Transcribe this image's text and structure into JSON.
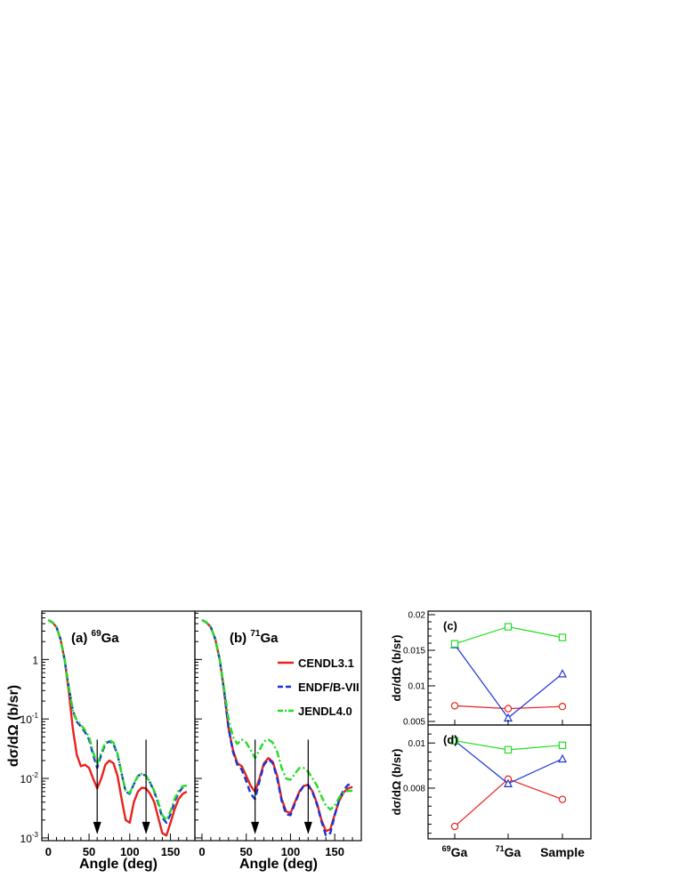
{
  "chart_data": [
    {
      "id": "a",
      "type": "line",
      "panel_label": "(a)",
      "nuclide_mass": "69",
      "nuclide_symbol": "Ga",
      "xlabel": "Angle (deg)",
      "ylabel": "dσ/dΩ (b/sr)",
      "xlim": [
        -8,
        180
      ],
      "ylim": [
        0.0009,
        6.5
      ],
      "yscale": "log",
      "x_ticks": [
        0,
        50,
        100,
        150
      ],
      "y_tick_labels": [
        {
          "value": 1,
          "base": "1",
          "exp": ""
        },
        {
          "value": 0.1,
          "base": "10",
          "exp": "-1"
        },
        {
          "value": 0.01,
          "base": "10",
          "exp": "-2"
        },
        {
          "value": 0.001,
          "base": "10",
          "exp": "-3"
        }
      ],
      "arrows_at_deg": [
        60,
        120
      ],
      "series": [
        {
          "name": "CENDL3.1",
          "color": "#e8221c",
          "dash": "solid",
          "x": [
            0,
            5,
            10,
            15,
            20,
            25,
            30,
            35,
            40,
            45,
            50,
            55,
            60,
            65,
            70,
            75,
            80,
            85,
            90,
            95,
            100,
            105,
            110,
            115,
            120,
            125,
            130,
            135,
            140,
            145,
            150,
            155,
            160,
            165,
            170
          ],
          "y": [
            4.6,
            4.2,
            3.5,
            2.2,
            1.0,
            0.3,
            0.07,
            0.025,
            0.016,
            0.017,
            0.015,
            0.01,
            0.0068,
            0.01,
            0.017,
            0.02,
            0.018,
            0.011,
            0.0045,
            0.002,
            0.0018,
            0.004,
            0.006,
            0.007,
            0.0068,
            0.0055,
            0.004,
            0.0022,
            0.0012,
            0.0011,
            0.0018,
            0.003,
            0.0045,
            0.0055,
            0.006
          ]
        },
        {
          "name": "ENDF/B-VII",
          "color": "#1a33d6",
          "dash": "dash",
          "x": [
            0,
            5,
            10,
            15,
            20,
            25,
            30,
            35,
            40,
            45,
            50,
            55,
            60,
            65,
            70,
            75,
            80,
            85,
            90,
            95,
            100,
            105,
            110,
            115,
            120,
            125,
            130,
            135,
            140,
            145,
            150,
            155,
            160,
            165,
            170
          ],
          "y": [
            4.6,
            4.2,
            3.5,
            2.2,
            1.0,
            0.35,
            0.14,
            0.09,
            0.075,
            0.06,
            0.045,
            0.025,
            0.015,
            0.025,
            0.038,
            0.042,
            0.038,
            0.025,
            0.012,
            0.006,
            0.0055,
            0.008,
            0.011,
            0.012,
            0.011,
            0.0085,
            0.006,
            0.0038,
            0.0022,
            0.0018,
            0.0025,
            0.004,
            0.0058,
            0.007,
            0.0072
          ]
        },
        {
          "name": "JENDL4.0",
          "color": "#22dd22",
          "dash": "dashdot",
          "x": [
            0,
            5,
            10,
            15,
            20,
            25,
            30,
            35,
            40,
            45,
            50,
            55,
            60,
            65,
            70,
            75,
            80,
            85,
            90,
            95,
            100,
            105,
            110,
            115,
            120,
            125,
            130,
            135,
            140,
            145,
            150,
            155,
            160,
            165,
            170
          ],
          "y": [
            4.6,
            4.2,
            3.5,
            2.2,
            1.0,
            0.35,
            0.14,
            0.095,
            0.08,
            0.065,
            0.05,
            0.028,
            0.017,
            0.027,
            0.04,
            0.044,
            0.04,
            0.026,
            0.012,
            0.0062,
            0.0057,
            0.0082,
            0.011,
            0.012,
            0.011,
            0.0086,
            0.0062,
            0.004,
            0.0024,
            0.002,
            0.0028,
            0.0045,
            0.0062,
            0.0074,
            0.0076
          ]
        }
      ]
    },
    {
      "id": "b",
      "type": "line",
      "panel_label": "(b)",
      "nuclide_mass": "71",
      "nuclide_symbol": "Ga",
      "xlabel": "Angle (deg)",
      "xlim": [
        -8,
        180
      ],
      "ylim": [
        0.0009,
        6.5
      ],
      "yscale": "log",
      "x_ticks": [
        0,
        50,
        100,
        150
      ],
      "arrows_at_deg": [
        60,
        120
      ],
      "series": [
        {
          "name": "CENDL3.1",
          "color": "#e8221c",
          "dash": "solid",
          "x": [
            0,
            5,
            10,
            15,
            20,
            25,
            30,
            35,
            40,
            45,
            50,
            55,
            60,
            65,
            70,
            75,
            80,
            85,
            90,
            95,
            100,
            105,
            110,
            115,
            120,
            125,
            130,
            135,
            140,
            145,
            150,
            155,
            160,
            165,
            170
          ],
          "y": [
            4.6,
            4.2,
            3.5,
            2.2,
            1.0,
            0.3,
            0.07,
            0.03,
            0.018,
            0.016,
            0.011,
            0.0075,
            0.006,
            0.01,
            0.018,
            0.022,
            0.019,
            0.011,
            0.0045,
            0.0028,
            0.0026,
            0.004,
            0.006,
            0.0075,
            0.0078,
            0.006,
            0.0038,
            0.002,
            0.0013,
            0.0014,
            0.0025,
            0.0042,
            0.0058,
            0.0068,
            0.0072
          ]
        },
        {
          "name": "ENDF/B-VII",
          "color": "#1a33d6",
          "dash": "dash",
          "x": [
            0,
            5,
            10,
            15,
            20,
            25,
            30,
            35,
            40,
            45,
            50,
            55,
            60,
            65,
            70,
            75,
            80,
            85,
            90,
            95,
            100,
            105,
            110,
            115,
            120,
            125,
            130,
            135,
            140,
            145,
            150,
            155,
            160,
            165,
            170
          ],
          "y": [
            4.6,
            4.2,
            3.5,
            2.2,
            1.0,
            0.3,
            0.07,
            0.028,
            0.017,
            0.014,
            0.009,
            0.0055,
            0.0045,
            0.009,
            0.017,
            0.021,
            0.018,
            0.01,
            0.0042,
            0.0025,
            0.0024,
            0.0038,
            0.0058,
            0.0075,
            0.0078,
            0.0058,
            0.0036,
            0.0019,
            0.0011,
            0.0012,
            0.0024,
            0.0044,
            0.0064,
            0.0078,
            0.0082
          ]
        },
        {
          "name": "JENDL4.0",
          "color": "#22dd22",
          "dash": "dashdot",
          "x": [
            0,
            5,
            10,
            15,
            20,
            25,
            30,
            35,
            40,
            45,
            50,
            55,
            60,
            65,
            70,
            75,
            80,
            85,
            90,
            95,
            100,
            105,
            110,
            115,
            120,
            125,
            130,
            135,
            140,
            145,
            150,
            155,
            160,
            165,
            170
          ],
          "y": [
            4.6,
            4.2,
            3.5,
            2.2,
            1.0,
            0.33,
            0.1,
            0.05,
            0.038,
            0.045,
            0.04,
            0.03,
            0.022,
            0.03,
            0.042,
            0.045,
            0.04,
            0.028,
            0.015,
            0.01,
            0.0095,
            0.012,
            0.015,
            0.015,
            0.013,
            0.01,
            0.0075,
            0.005,
            0.0035,
            0.003,
            0.0035,
            0.0048,
            0.0058,
            0.0062,
            0.0062
          ]
        }
      ]
    },
    {
      "id": "c",
      "type": "line",
      "panel_label": "(c)",
      "ylabel": "dσ/dΩ (b/sr)",
      "categories": [
        "69Ga",
        "71Ga",
        "Sample"
      ],
      "ylim": [
        0.0045,
        0.0205
      ],
      "y_ticks": [
        0.005,
        0.01,
        0.015,
        0.02
      ],
      "y_tick_labels": [
        "0.005",
        "0.01",
        "0.015",
        "0.02"
      ],
      "series": [
        {
          "marker": "circle",
          "color": "#e8221c",
          "values": [
            0.0072,
            0.0068,
            0.0071
          ]
        },
        {
          "marker": "triangle",
          "color": "#1a33d6",
          "values": [
            0.0158,
            0.0055,
            0.0117
          ]
        },
        {
          "marker": "square",
          "color": "#22dd22",
          "values": [
            0.0159,
            0.0183,
            0.0168
          ]
        }
      ]
    },
    {
      "id": "d",
      "type": "line",
      "panel_label": "(d)",
      "ylabel": "dσ/dΩ (b/sr)",
      "categories": [
        "69Ga",
        "71Ga",
        "Sample"
      ],
      "category_labels": [
        {
          "mass": "69",
          "symbol": "Ga"
        },
        {
          "mass": "71",
          "symbol": "Ga"
        },
        {
          "mass": "",
          "symbol": "Sample"
        }
      ],
      "ylim": [
        0.00575,
        0.0108
      ],
      "y_ticks": [
        0.008,
        0.01
      ],
      "y_tick_labels": [
        "0.008",
        "0.01"
      ],
      "series": [
        {
          "marker": "circle",
          "color": "#e8221c",
          "values": [
            0.0063,
            0.0084,
            0.0075
          ]
        },
        {
          "marker": "triangle",
          "color": "#1a33d6",
          "values": [
            0.0101,
            0.0082,
            0.0093
          ]
        },
        {
          "marker": "square",
          "color": "#22dd22",
          "values": [
            0.0101,
            0.0097,
            0.0099
          ]
        }
      ]
    }
  ]
}
